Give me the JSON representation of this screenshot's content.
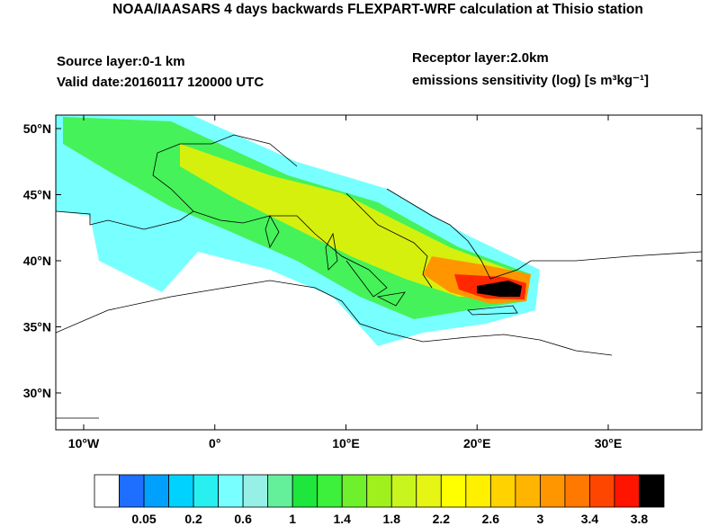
{
  "title": "NOAA/IAASARS 4 days backwards FLEXPART-WRF calculation at Thisio station",
  "source_layer": "Source layer:0-1 km",
  "valid_date": "Valid date:20160117 120000 UTC",
  "receptor_layer": "Receptor layer:2.0km",
  "units": "emissions sensitivity (log) [s m³kg⁻¹]",
  "lat_labels": [
    "50°N",
    "45°N",
    "40°N",
    "35°N",
    "30°N"
  ],
  "lon_labels": [
    "10°W",
    "0°",
    "10°E",
    "20°E",
    "30°E"
  ],
  "colorbar": {
    "colors": [
      "#ffffff",
      "#1e6eff",
      "#00a0ff",
      "#00d2ff",
      "#28f0f0",
      "#78ffff",
      "#96f0e6",
      "#64f09b",
      "#1ee63c",
      "#3cf03c",
      "#6ef02d",
      "#a0f01e",
      "#c8f51e",
      "#e6f514",
      "#ffff00",
      "#fff000",
      "#ffd200",
      "#ffb400",
      "#ff9600",
      "#ff7800",
      "#ff4600",
      "#ff1400",
      "#000000"
    ],
    "labels": [
      "0.05",
      "0.2",
      "0.6",
      "1",
      "1.4",
      "1.8",
      "2.2",
      "2.6",
      "3",
      "3.4",
      "3.8"
    ]
  }
}
